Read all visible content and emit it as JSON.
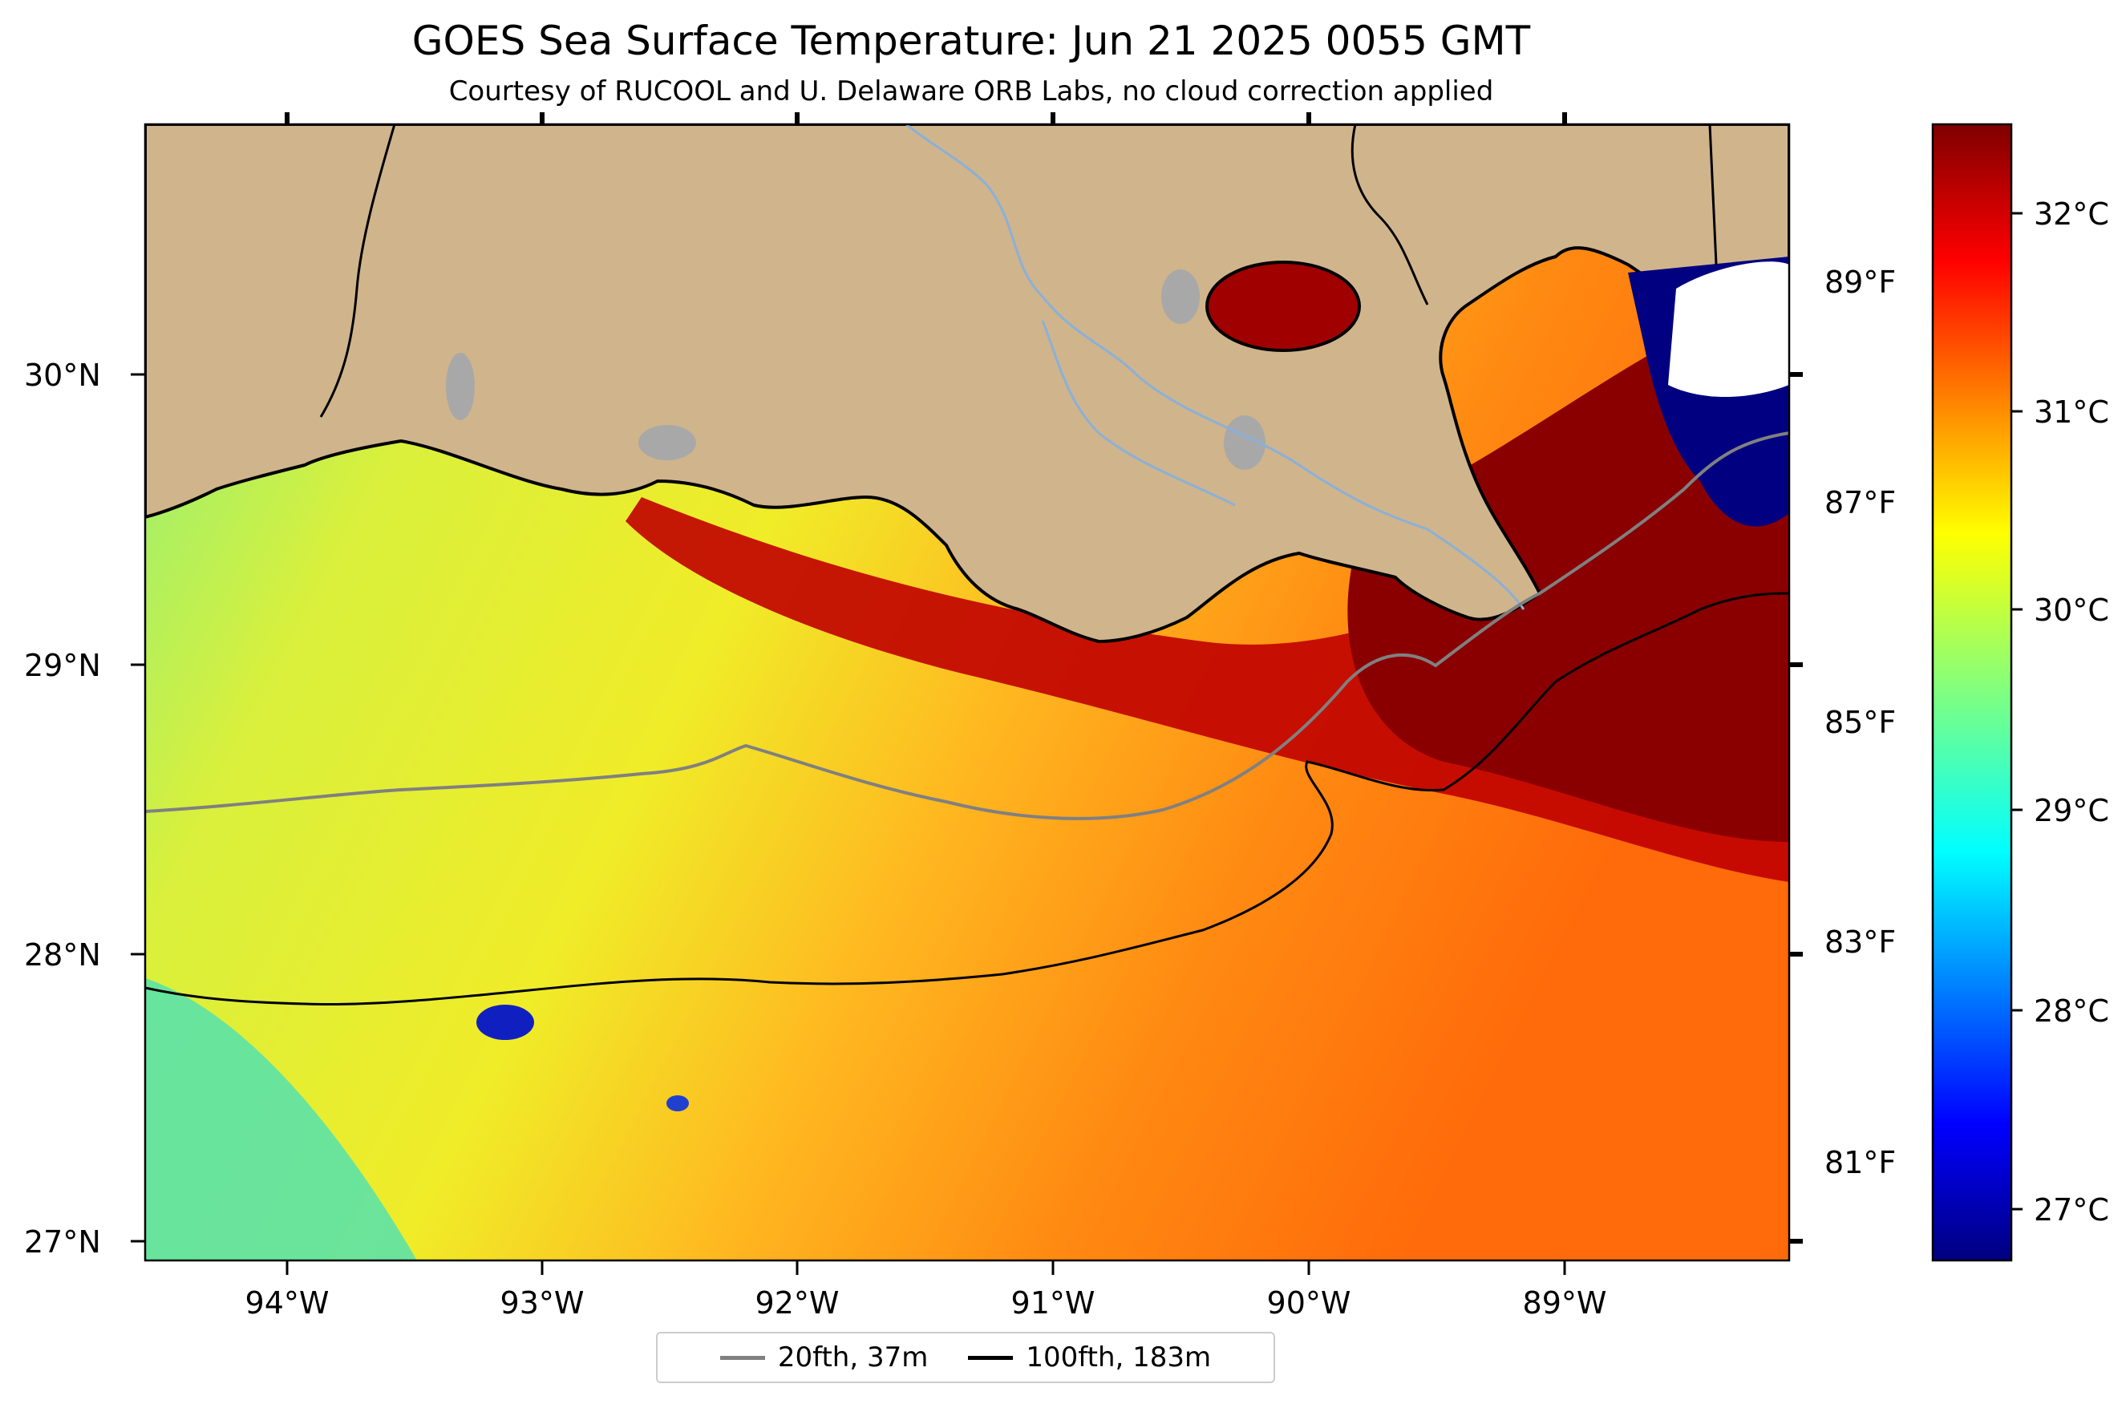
{
  "title": "GOES Sea Surface Temperature: Jun 21 2025 0055 GMT",
  "subtitle": "Courtesy of RUCOOL and U. Delaware ORB Labs, no cloud correction applied",
  "map": {
    "lat_ticks": [
      "30°N",
      "29°N",
      "28°N",
      "27°N"
    ],
    "lon_ticks": [
      "94°W",
      "93°W",
      "92°W",
      "91°W",
      "90°W",
      "89°W"
    ],
    "fahrenheit_ticks": [
      "89°F",
      "87°F",
      "85°F",
      "83°F",
      "81°F"
    ],
    "land_color": "#d0b48c",
    "lake_color": "#a8a8a8"
  },
  "colorbar": {
    "colormap": "jet",
    "ticks": [
      "32°C",
      "31°C",
      "30°C",
      "29°C",
      "28°C",
      "27°C"
    ]
  },
  "legend": {
    "items": [
      {
        "label": "20fth, 37m",
        "color": "#808080"
      },
      {
        "label": "100fth, 183m",
        "color": "#000000"
      }
    ]
  }
}
